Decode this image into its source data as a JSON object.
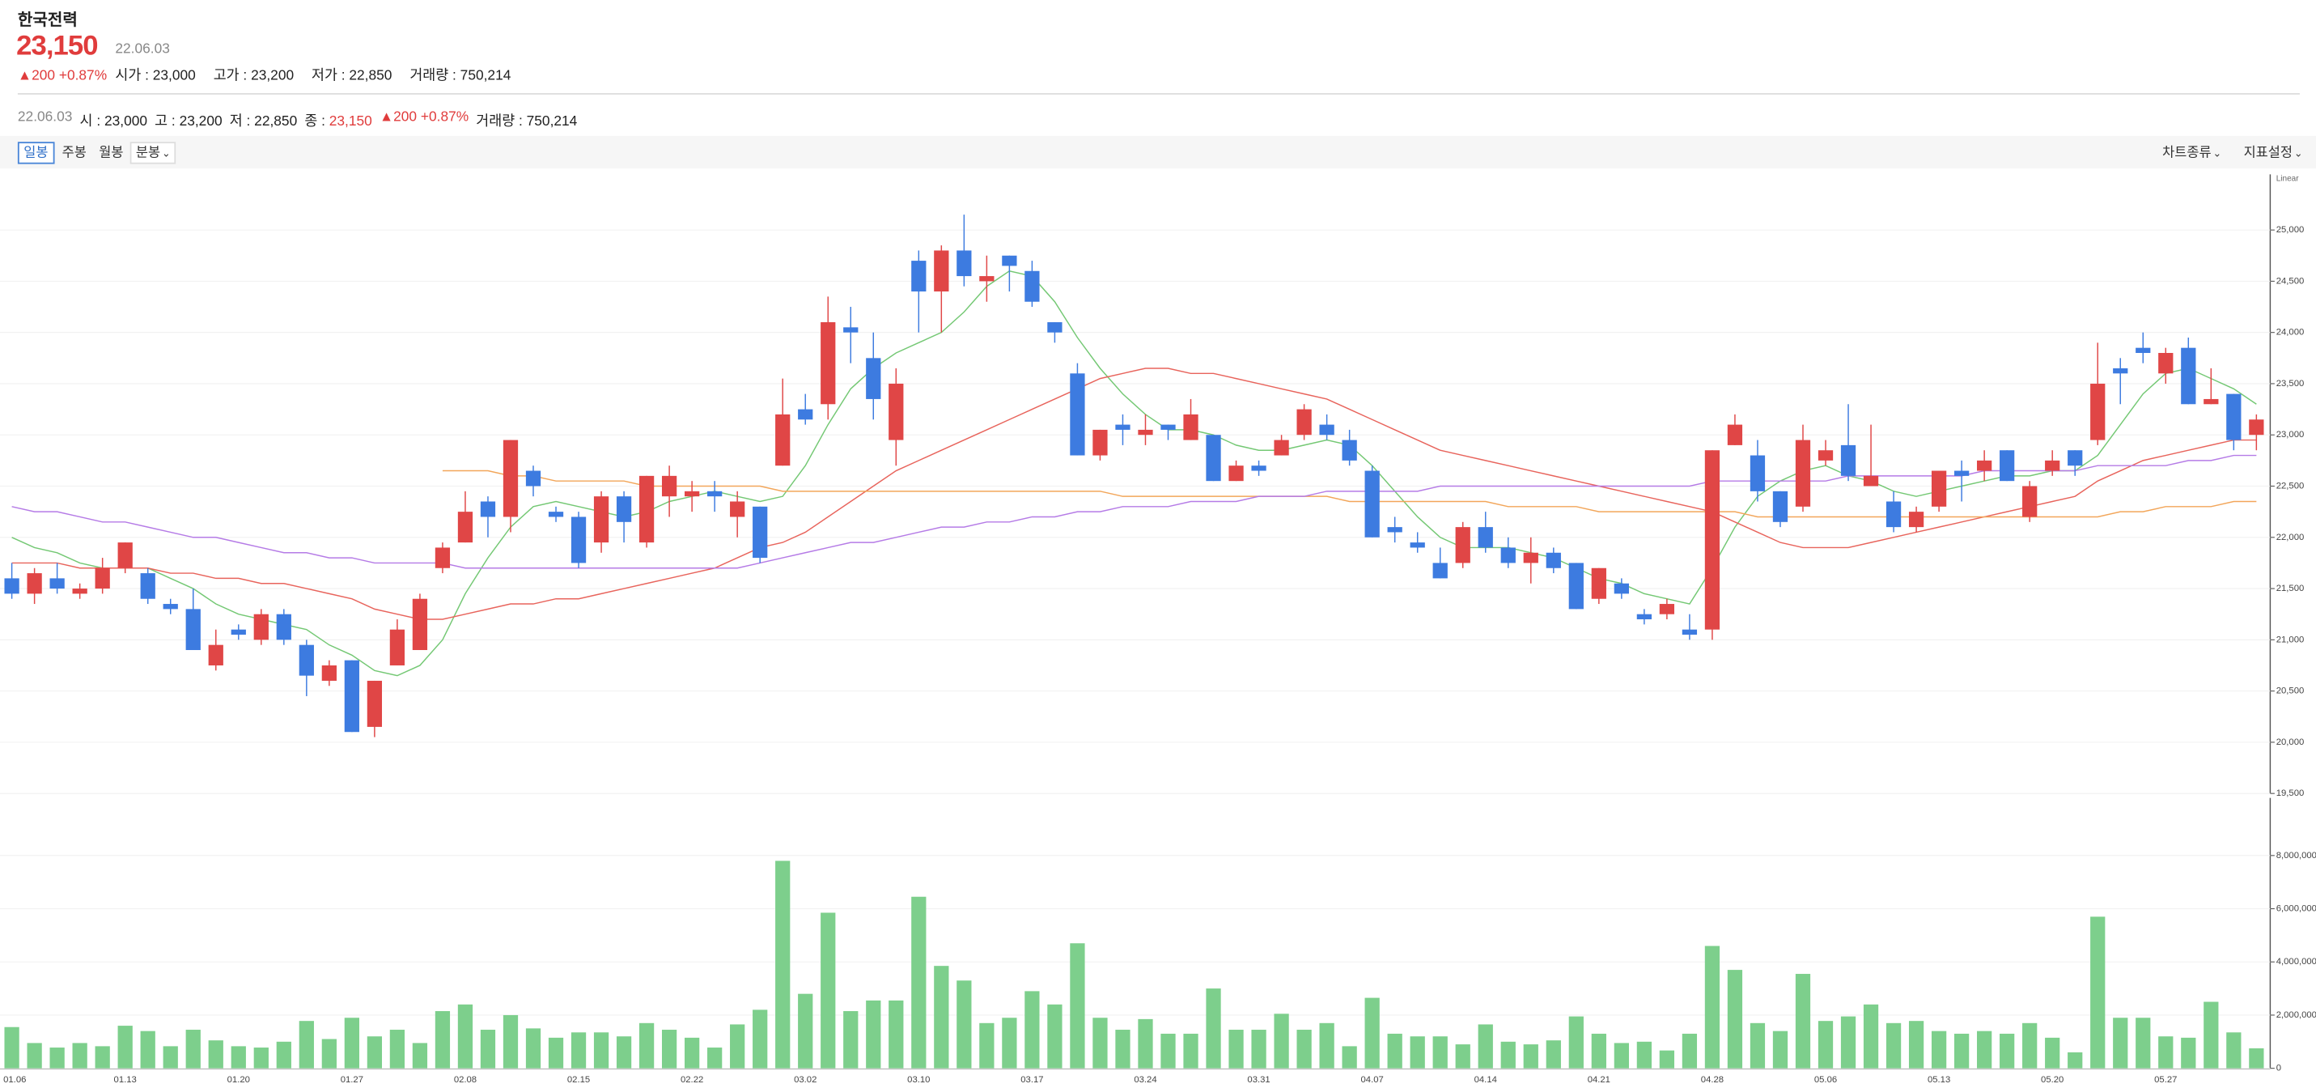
{
  "header": {
    "name": "한국전력",
    "price": "23,150",
    "date": "22.06.03",
    "change": "▲200 +0.87%",
    "stats": [
      {
        "label": "시가",
        "value": "23,000"
      },
      {
        "label": "고가",
        "value": "23,200"
      },
      {
        "label": "저가",
        "value": "22,850"
      },
      {
        "label": "거래량",
        "value": "750,214"
      }
    ]
  },
  "summary": {
    "date": "22.06.03",
    "items": [
      {
        "label": "시",
        "value": "23,000"
      },
      {
        "label": "고",
        "value": "23,200"
      },
      {
        "label": "저",
        "value": "22,850"
      },
      {
        "label": "종",
        "value": "23,150"
      }
    ],
    "change": "▲200 +0.87%",
    "volume_label": "거래량",
    "volume": "750,214"
  },
  "toolbar": {
    "periods": [
      "일봉",
      "주봉",
      "월봉",
      "분봉"
    ],
    "chart_type": "차트종류",
    "indicators": "지표설정"
  },
  "chart_data": [
    {
      "type": "candlestick",
      "scale_label": "Linear",
      "up_color": "#e04646",
      "down_color": "#3d7be0",
      "grid": true,
      "categories": [
        "01.06",
        null,
        null,
        null,
        null,
        "01.13",
        null,
        null,
        null,
        null,
        "01.20",
        null,
        null,
        null,
        null,
        "01.27",
        null,
        null,
        null,
        null,
        "02.08",
        null,
        null,
        null,
        null,
        "02.15",
        null,
        null,
        null,
        null,
        "02.22",
        null,
        null,
        null,
        null,
        "03.02",
        null,
        null,
        null,
        null,
        "03.10",
        null,
        null,
        null,
        null,
        "03.17",
        null,
        null,
        null,
        null,
        "03.24",
        null,
        null,
        null,
        null,
        "03.31",
        null,
        null,
        null,
        null,
        "04.07",
        null,
        null,
        null,
        null,
        "04.14",
        null,
        null,
        null,
        null,
        "04.21",
        null,
        null,
        null,
        null,
        "04.28",
        null,
        null,
        null,
        null,
        "05.06",
        null,
        null,
        null,
        null,
        "05.13",
        null,
        null,
        null,
        null,
        "05.20",
        null,
        null,
        null,
        null,
        "05.27",
        null,
        null,
        null,
        null
      ],
      "open": [
        21600,
        21450,
        21600,
        21450,
        21500,
        21700,
        21650,
        21350,
        21300,
        20750,
        21100,
        21000,
        21250,
        20950,
        20600,
        20800,
        20150,
        20750,
        20900,
        21700,
        21950,
        22350,
        22200,
        22650,
        22250,
        22200,
        21950,
        22400,
        21950,
        22400,
        22400,
        22450,
        22200,
        22300,
        22700,
        23250,
        23300,
        24050,
        23750,
        22950,
        24700,
        24400,
        24800,
        24500,
        24750,
        24600,
        24100,
        23600,
        22800,
        23100,
        23000,
        23100,
        22950,
        23000,
        22550,
        22700,
        22800,
        23000,
        23100,
        22950,
        22650,
        22100,
        21950,
        21750,
        21750,
        22100,
        21900,
        21750,
        21850,
        21750,
        21400,
        21550,
        21250,
        21250,
        21100,
        21100,
        22900,
        22800,
        22450,
        22300,
        22750,
        22900,
        22500,
        22350,
        22100,
        22300,
        22650,
        22650,
        22850,
        22200,
        22650,
        22850,
        22950,
        23650,
        23850,
        23600,
        23850,
        23300,
        23400,
        23000
      ],
      "high": [
        21750,
        21700,
        21750,
        21550,
        21800,
        21950,
        21700,
        21400,
        21500,
        21100,
        21150,
        21300,
        21300,
        21000,
        20800,
        20800,
        20600,
        21200,
        21450,
        21950,
        22450,
        22400,
        22950,
        22700,
        22300,
        22250,
        22450,
        22450,
        22600,
        22700,
        22550,
        22550,
        22450,
        22300,
        23550,
        23400,
        24350,
        24250,
        24000,
        23650,
        24800,
        24850,
        25150,
        24750,
        24750,
        24700,
        24100,
        23700,
        23050,
        23200,
        23200,
        23100,
        23350,
        23000,
        22750,
        22750,
        23000,
        23300,
        23200,
        23050,
        22700,
        22200,
        22050,
        21900,
        22150,
        22250,
        22000,
        22000,
        21900,
        21750,
        21700,
        21600,
        21300,
        21400,
        21250,
        22850,
        23200,
        22950,
        22450,
        23100,
        22950,
        23300,
        23100,
        22450,
        22300,
        22650,
        22750,
        22850,
        22850,
        22550,
        22850,
        22850,
        23900,
        23750,
        24000,
        23850,
        23950,
        23650,
        23400,
        23200
      ],
      "low": [
        21400,
        21350,
        21450,
        21400,
        21450,
        21650,
        21350,
        21250,
        20900,
        20700,
        21000,
        20950,
        20950,
        20450,
        20550,
        20100,
        20050,
        20750,
        20900,
        21650,
        21950,
        22000,
        22050,
        22400,
        22150,
        21700,
        21850,
        21950,
        21900,
        22200,
        22250,
        22250,
        22000,
        21750,
        22700,
        23100,
        23150,
        23700,
        23150,
        22700,
        24000,
        24000,
        24450,
        24300,
        24400,
        24250,
        23900,
        22800,
        22750,
        22900,
        22900,
        22950,
        22950,
        22550,
        22550,
        22600,
        22800,
        22950,
        22950,
        22700,
        22000,
        21950,
        21850,
        21600,
        21700,
        21850,
        21700,
        21550,
        21650,
        21300,
        21350,
        21400,
        21150,
        21200,
        21000,
        21000,
        22900,
        22350,
        22100,
        22250,
        22700,
        22550,
        22500,
        22050,
        22050,
        22250,
        22350,
        22550,
        22550,
        22150,
        22600,
        22600,
        22900,
        23300,
        23700,
        23500,
        23300,
        23300,
        22850,
        22850
      ],
      "close": [
        21450,
        21650,
        21500,
        21500,
        21700,
        21950,
        21400,
        21300,
        20900,
        20950,
        21050,
        21250,
        21000,
        20650,
        20750,
        20100,
        20600,
        21100,
        21400,
        21900,
        22250,
        22200,
        22950,
        22500,
        22200,
        21750,
        22400,
        22150,
        22600,
        22600,
        22450,
        22400,
        22350,
        21800,
        23200,
        23150,
        24100,
        24000,
        23350,
        23500,
        24400,
        24800,
        24550,
        24550,
        24650,
        24300,
        24000,
        22800,
        23050,
        23050,
        23050,
        23050,
        23200,
        22550,
        22700,
        22650,
        22950,
        23250,
        23000,
        22750,
        22000,
        22050,
        21900,
        21600,
        22100,
        21900,
        21750,
        21850,
        21700,
        21300,
        21700,
        21450,
        21200,
        21350,
        21050,
        22850,
        23100,
        22450,
        22150,
        22950,
        22850,
        22600,
        22600,
        22100,
        22250,
        22650,
        22600,
        22750,
        22550,
        22500,
        22750,
        22700,
        23500,
        23600,
        23800,
        23800,
        23300,
        23350,
        22950,
        23150
      ],
      "series": [
        {
          "color": "#74c874",
          "values": [
            22000,
            21900,
            21850,
            21750,
            21700,
            21700,
            21700,
            21600,
            21500,
            21350,
            21250,
            21200,
            21150,
            21100,
            20950,
            20850,
            20700,
            20650,
            20750,
            21000,
            21450,
            21800,
            22100,
            22300,
            22350,
            22300,
            22250,
            22200,
            22250,
            22350,
            22400,
            22450,
            22400,
            22350,
            22400,
            22700,
            23100,
            23450,
            23650,
            23800,
            23900,
            24000,
            24200,
            24450,
            24600,
            24550,
            24300,
            23950,
            23650,
            23400,
            23200,
            23050,
            23050,
            23000,
            22900,
            22850,
            22850,
            22900,
            22950,
            22900,
            22700,
            22450,
            22200,
            22000,
            21900,
            21900,
            21900,
            21850,
            21800,
            21700,
            21600,
            21550,
            21450,
            21400,
            21350,
            21700,
            22100,
            22400,
            22550,
            22650,
            22700,
            22600,
            22550,
            22450,
            22400,
            22450,
            22500,
            22550,
            22600,
            22600,
            22650,
            22650,
            22800,
            23100,
            23400,
            23600,
            23650,
            23550,
            23450,
            23300
          ]
        },
        {
          "color": "#e8645c",
          "values": [
            21750,
            21750,
            21750,
            21700,
            21700,
            21700,
            21700,
            21650,
            21650,
            21600,
            21600,
            21550,
            21550,
            21500,
            21450,
            21400,
            21300,
            21250,
            21200,
            21200,
            21250,
            21300,
            21350,
            21350,
            21400,
            21400,
            21450,
            21500,
            21550,
            21600,
            21650,
            21700,
            21800,
            21900,
            21950,
            22050,
            22200,
            22350,
            22500,
            22650,
            22750,
            22850,
            22950,
            23050,
            23150,
            23250,
            23350,
            23450,
            23550,
            23600,
            23650,
            23650,
            23600,
            23600,
            23550,
            23500,
            23450,
            23400,
            23350,
            23250,
            23150,
            23050,
            22950,
            22850,
            22800,
            22750,
            22700,
            22650,
            22600,
            22550,
            22500,
            22450,
            22400,
            22350,
            22300,
            22250,
            22150,
            22050,
            21950,
            21900,
            21900,
            21900,
            21950,
            22000,
            22050,
            22100,
            22150,
            22200,
            22250,
            22300,
            22350,
            22400,
            22550,
            22650,
            22750,
            22800,
            22850,
            22900,
            22950,
            22950
          ]
        },
        {
          "color": "#f2a65a",
          "values": [
            null,
            null,
            null,
            null,
            null,
            null,
            null,
            null,
            null,
            null,
            null,
            null,
            null,
            null,
            null,
            null,
            null,
            null,
            null,
            22650,
            22650,
            22650,
            22600,
            22600,
            22550,
            22550,
            22550,
            22550,
            22500,
            22500,
            22500,
            22500,
            22500,
            22500,
            22450,
            22450,
            22450,
            22450,
            22450,
            22450,
            22450,
            22450,
            22450,
            22450,
            22450,
            22450,
            22450,
            22450,
            22450,
            22400,
            22400,
            22400,
            22400,
            22400,
            22400,
            22400,
            22400,
            22400,
            22400,
            22350,
            22350,
            22350,
            22350,
            22350,
            22350,
            22350,
            22300,
            22300,
            22300,
            22300,
            22250,
            22250,
            22250,
            22250,
            22250,
            22250,
            22250,
            22200,
            22200,
            22200,
            22200,
            22200,
            22200,
            22200,
            22200,
            22200,
            22200,
            22200,
            22200,
            22200,
            22200,
            22200,
            22200,
            22250,
            22250,
            22300,
            22300,
            22300,
            22350,
            22350
          ]
        },
        {
          "color": "#b57be6",
          "values": [
            22300,
            22250,
            22250,
            22200,
            22150,
            22150,
            22100,
            22050,
            22000,
            22000,
            21950,
            21900,
            21850,
            21850,
            21800,
            21800,
            21750,
            21750,
            21750,
            21750,
            21700,
            21700,
            21700,
            21700,
            21700,
            21700,
            21700,
            21700,
            21700,
            21700,
            21700,
            21700,
            21700,
            21750,
            21800,
            21850,
            21900,
            21950,
            21950,
            22000,
            22050,
            22100,
            22100,
            22150,
            22150,
            22200,
            22200,
            22250,
            22250,
            22300,
            22300,
            22300,
            22350,
            22350,
            22350,
            22400,
            22400,
            22400,
            22450,
            22450,
            22450,
            22450,
            22450,
            22500,
            22500,
            22500,
            22500,
            22500,
            22500,
            22500,
            22500,
            22500,
            22500,
            22500,
            22500,
            22550,
            22550,
            22550,
            22550,
            22550,
            22550,
            22600,
            22600,
            22600,
            22600,
            22600,
            22600,
            22650,
            22650,
            22650,
            22650,
            22650,
            22700,
            22700,
            22700,
            22700,
            22750,
            22750,
            22800,
            22800
          ]
        }
      ],
      "ylim": [
        19500,
        25500
      ],
      "yticks": [
        {
          "value": 19500,
          "label": "19,500"
        },
        {
          "value": 20000,
          "label": "20,000"
        },
        {
          "value": 20500,
          "label": "20,500"
        },
        {
          "value": 21000,
          "label": "21,000"
        },
        {
          "value": 21500,
          "label": "21,500"
        },
        {
          "value": 22000,
          "label": "22,000"
        },
        {
          "value": 22500,
          "label": "22,500"
        },
        {
          "value": 23000,
          "label": "23,000"
        },
        {
          "value": 23500,
          "label": "23,500"
        },
        {
          "value": 24000,
          "label": "24,000"
        },
        {
          "value": 24500,
          "label": "24,500"
        },
        {
          "value": 25000,
          "label": "25,000"
        }
      ]
    },
    {
      "type": "bar",
      "color": "#7dcf8c",
      "grid": true,
      "values": [
        1550000,
        950000,
        780000,
        950000,
        830000,
        1600000,
        1400000,
        830000,
        1450000,
        1050000,
        830000,
        780000,
        1000000,
        1780000,
        1100000,
        1900000,
        1200000,
        1450000,
        950000,
        2150000,
        2400000,
        1450000,
        2000000,
        1500000,
        1150000,
        1350000,
        1350000,
        1200000,
        1700000,
        1450000,
        1150000,
        780000,
        1650000,
        2200000,
        7800000,
        2800000,
        5850000,
        2150000,
        2550000,
        2550000,
        6450000,
        3850000,
        3300000,
        1700000,
        1900000,
        2900000,
        2400000,
        4700000,
        1900000,
        1450000,
        1850000,
        1300000,
        1300000,
        3000000,
        1450000,
        1450000,
        2050000,
        1450000,
        1700000,
        830000,
        2650000,
        1300000,
        1200000,
        1200000,
        900000,
        1650000,
        1000000,
        900000,
        1050000,
        1950000,
        1300000,
        950000,
        1000000,
        670000,
        1300000,
        4600000,
        3700000,
        1700000,
        1400000,
        3550000,
        1780000,
        1950000,
        2400000,
        1700000,
        1780000,
        1400000,
        1300000,
        1400000,
        1300000,
        1700000,
        1150000,
        600000,
        5700000,
        1900000,
        1900000,
        1200000,
        1150000,
        2500000,
        1350000,
        750214
      ],
      "ylim": [
        0,
        10000000
      ],
      "yticks": [
        0,
        {
          "value": 2000000,
          "label": "2,000,000"
        },
        {
          "value": 4000000,
          "label": "4,000,000"
        },
        {
          "value": 6000000,
          "label": "6,000,000"
        },
        {
          "value": 8000000,
          "label": "8,000,000"
        }
      ]
    }
  ]
}
